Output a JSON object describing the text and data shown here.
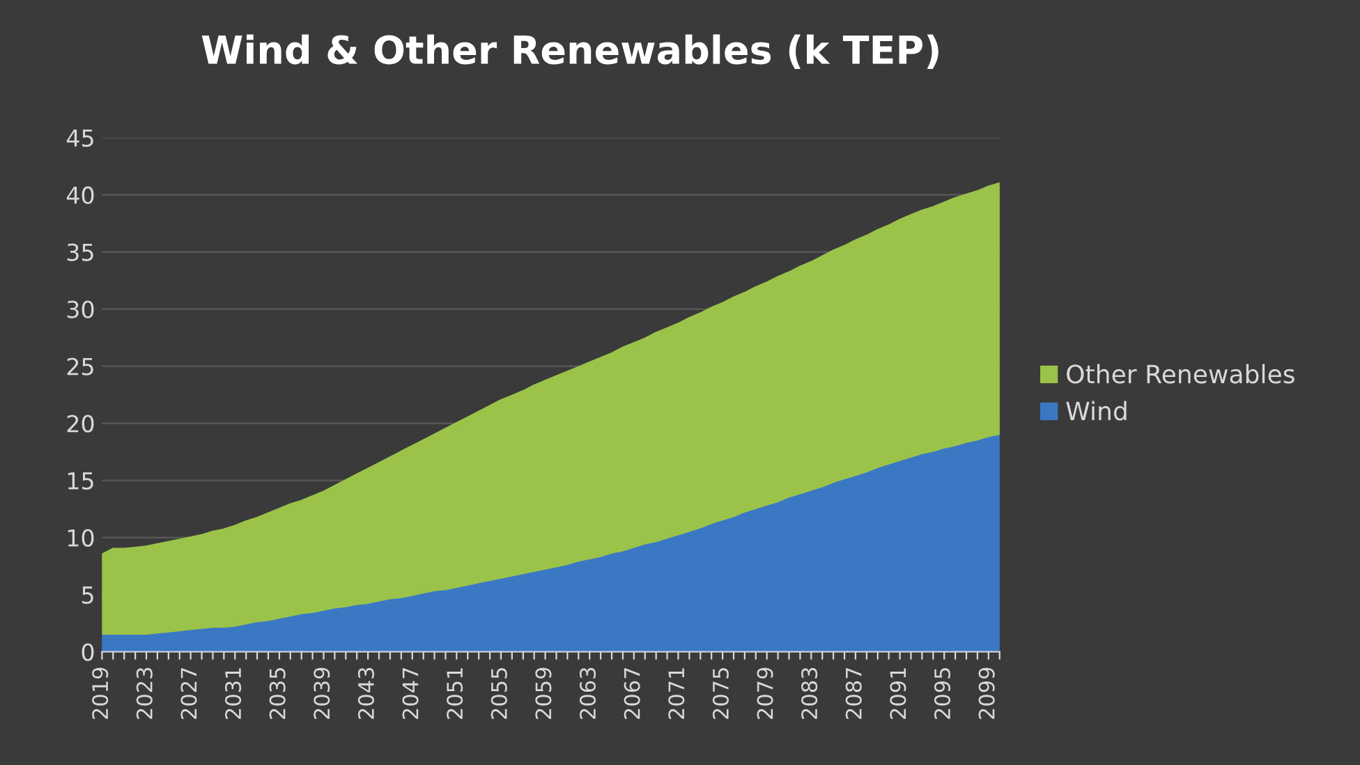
{
  "chart_data": {
    "type": "area",
    "title": "Wind & Other Renewables (k TEP)",
    "stacked": true,
    "categories": [
      "2019",
      null,
      null,
      null,
      "2023",
      null,
      null,
      null,
      "2027",
      null,
      null,
      null,
      "2031",
      null,
      null,
      null,
      "2035",
      null,
      null,
      null,
      "2039",
      null,
      null,
      null,
      "2043",
      null,
      null,
      null,
      "2047",
      null,
      null,
      null,
      "2051",
      null,
      null,
      null,
      "2055",
      null,
      null,
      null,
      "2059",
      null,
      null,
      null,
      "2063",
      null,
      null,
      null,
      "2067",
      null,
      null,
      null,
      "2071",
      null,
      null,
      null,
      "2075",
      null,
      null,
      null,
      "2079",
      null,
      null,
      null,
      "2083",
      null,
      null,
      null,
      "2087",
      null,
      null,
      null,
      "2091",
      null,
      null,
      null,
      "2095",
      null,
      null,
      null,
      "2099",
      null
    ],
    "series": [
      {
        "name": "Wind",
        "color": "#3b78c4",
        "values": [
          1.6,
          1.6,
          1.6,
          1.6,
          1.6,
          1.7,
          1.8,
          1.9,
          2.0,
          2.1,
          2.2,
          2.2,
          2.3,
          2.5,
          2.7,
          2.8,
          3.0,
          3.2,
          3.4,
          3.5,
          3.7,
          3.9,
          4.0,
          4.2,
          4.3,
          4.5,
          4.7,
          4.8,
          5.0,
          5.2,
          5.4,
          5.5,
          5.7,
          5.9,
          6.1,
          6.3,
          6.5,
          6.7,
          6.9,
          7.1,
          7.3,
          7.5,
          7.7,
          8.0,
          8.2,
          8.4,
          8.7,
          8.9,
          9.2,
          9.5,
          9.7,
          10.0,
          10.3,
          10.6,
          10.9,
          11.3,
          11.6,
          11.9,
          12.3,
          12.6,
          12.9,
          13.2,
          13.6,
          13.9,
          14.2,
          14.5,
          14.9,
          15.2,
          15.5,
          15.8,
          16.2,
          16.5,
          16.8,
          17.1,
          17.4,
          17.6,
          17.9,
          18.1,
          18.4,
          18.6,
          18.9,
          19.1
        ]
      },
      {
        "name": "Other Renewables",
        "color": "#9bc34a",
        "values": [
          6.9,
          7.4,
          7.4,
          7.5,
          7.6,
          7.7,
          7.8,
          7.9,
          8.0,
          8.1,
          8.3,
          8.5,
          8.7,
          8.9,
          9.0,
          9.3,
          9.5,
          9.7,
          9.8,
          10.1,
          10.3,
          10.6,
          11.0,
          11.3,
          11.7,
          12.0,
          12.3,
          12.7,
          13.0,
          13.3,
          13.6,
          14.0,
          14.3,
          14.6,
          14.9,
          15.2,
          15.5,
          15.7,
          15.9,
          16.2,
          16.4,
          16.6,
          16.8,
          16.9,
          17.1,
          17.3,
          17.4,
          17.7,
          17.8,
          17.9,
          18.2,
          18.3,
          18.4,
          18.6,
          18.7,
          18.8,
          18.9,
          19.1,
          19.1,
          19.3,
          19.4,
          19.6,
          19.6,
          19.8,
          19.9,
          20.1,
          20.2,
          20.3,
          20.5,
          20.6,
          20.7,
          20.8,
          21.0,
          21.1,
          21.2,
          21.3,
          21.4,
          21.6,
          21.6,
          21.7,
          21.8,
          21.9
        ]
      }
    ],
    "ylim": [
      0,
      45
    ],
    "yticks": [
      0,
      5,
      10,
      15,
      20,
      25,
      30,
      35,
      40,
      45
    ],
    "grid": "y",
    "legend": "right"
  }
}
